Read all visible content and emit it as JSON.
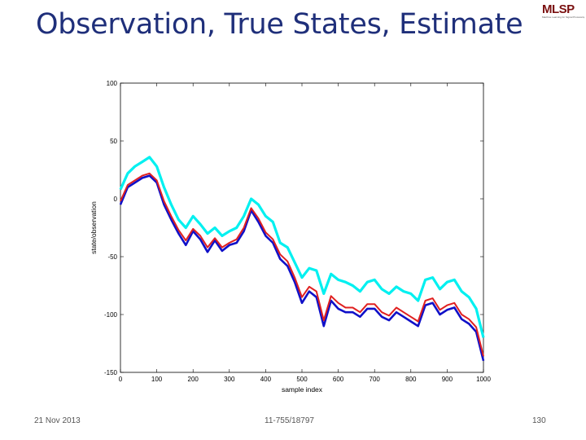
{
  "slide": {
    "title": "Observation, True States, Estimate",
    "logo": "MLSP",
    "logo_tagline": "Machine Learning for Signal Processing",
    "footer_date": "21 Nov 2013",
    "footer_course": "11-755/18797",
    "footer_page": "130"
  },
  "chart_data": {
    "type": "line",
    "title": "",
    "xlabel": "sample index",
    "ylabel": "state/observation",
    "xlim": [
      0,
      1000
    ],
    "ylim": [
      -150,
      100
    ],
    "xticks": [
      0,
      100,
      200,
      300,
      400,
      500,
      600,
      700,
      800,
      900,
      1000
    ],
    "yticks": [
      100,
      50,
      0,
      -50,
      -100,
      -150
    ],
    "grid": false,
    "legend": "none",
    "x": [
      0,
      20,
      40,
      60,
      80,
      100,
      120,
      140,
      160,
      180,
      200,
      220,
      240,
      260,
      280,
      300,
      320,
      340,
      360,
      380,
      400,
      420,
      440,
      460,
      480,
      500,
      520,
      540,
      560,
      580,
      600,
      620,
      640,
      660,
      680,
      700,
      720,
      740,
      760,
      780,
      800,
      820,
      840,
      860,
      880,
      900,
      920,
      940,
      960,
      980,
      1000
    ],
    "series": [
      {
        "name": "observation",
        "color": "#00f0f0",
        "values": [
          8,
          22,
          28,
          32,
          36,
          28,
          10,
          -5,
          -18,
          -25,
          -15,
          -22,
          -30,
          -25,
          -32,
          -28,
          -25,
          -15,
          0,
          -5,
          -15,
          -20,
          -38,
          -42,
          -55,
          -68,
          -60,
          -62,
          -82,
          -65,
          -70,
          -72,
          -75,
          -80,
          -72,
          -70,
          -78,
          -82,
          -76,
          -80,
          -82,
          -88,
          -70,
          -68,
          -78,
          -72,
          -70,
          -80,
          -85,
          -95,
          -120
        ]
      },
      {
        "name": "true state",
        "color": "#1010c8",
        "values": [
          -5,
          10,
          14,
          18,
          20,
          14,
          -5,
          -18,
          -30,
          -40,
          -28,
          -35,
          -46,
          -36,
          -45,
          -40,
          -38,
          -28,
          -10,
          -20,
          -32,
          -38,
          -52,
          -58,
          -72,
          -90,
          -80,
          -85,
          -110,
          -88,
          -95,
          -98,
          -98,
          -102,
          -95,
          -95,
          -102,
          -105,
          -98,
          -102,
          -106,
          -110,
          -92,
          -90,
          -100,
          -96,
          -94,
          -104,
          -108,
          -115,
          -140
        ]
      },
      {
        "name": "estimate",
        "color": "#e02020",
        "values": [
          -2,
          12,
          16,
          20,
          22,
          16,
          -2,
          -15,
          -27,
          -36,
          -26,
          -32,
          -42,
          -34,
          -42,
          -38,
          -35,
          -25,
          -8,
          -17,
          -29,
          -35,
          -48,
          -54,
          -68,
          -85,
          -76,
          -80,
          -105,
          -84,
          -90,
          -94,
          -94,
          -98,
          -91,
          -91,
          -98,
          -101,
          -94,
          -98,
          -102,
          -106,
          -88,
          -86,
          -96,
          -92,
          -90,
          -100,
          -104,
          -111,
          -136
        ]
      }
    ]
  }
}
